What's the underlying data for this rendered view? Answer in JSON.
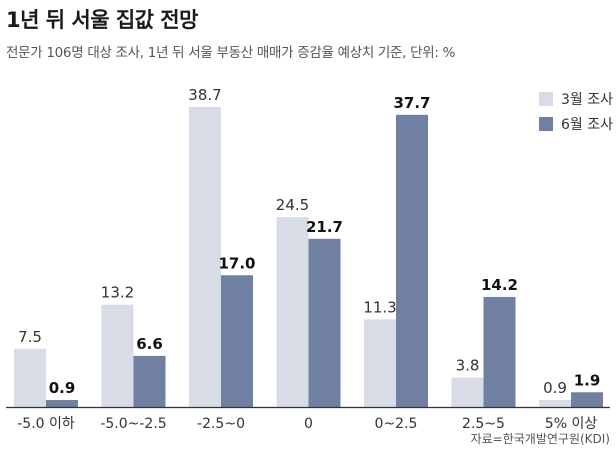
{
  "title": "1년 뒤 서울 집값 전망",
  "subtitle": "전문가 106명 대상 조사, 1년 뒤 서울 부동산 매매가 증감율 예상치 기준, 단위: %",
  "source": "자료=한국개발연구원(KDI)",
  "colors": {
    "march": "#d8dce6",
    "june": "#6f80a2",
    "axis": "#333333"
  },
  "chart_data": {
    "type": "bar",
    "title": "1년 뒤 서울 집값 전망",
    "subtitle": "전문가 106명 대상 조사, 1년 뒤 서울 부동산 매매가 증감율 예상치 기준, 단위: %",
    "categories": [
      "-5.0 이하",
      "-5.0~-2.5",
      "-2.5~0",
      "0",
      "0~2.5",
      "2.5~5",
      "5% 이상"
    ],
    "series": [
      {
        "name": "3월 조사",
        "values": [
          7.5,
          13.2,
          38.7,
          24.5,
          11.3,
          3.8,
          0.9
        ]
      },
      {
        "name": "6월 조사",
        "values": [
          0.9,
          6.6,
          17.0,
          21.7,
          37.7,
          14.2,
          1.9
        ]
      }
    ],
    "ylim": [
      0,
      40
    ],
    "grid": false,
    "legend": "top-right"
  }
}
